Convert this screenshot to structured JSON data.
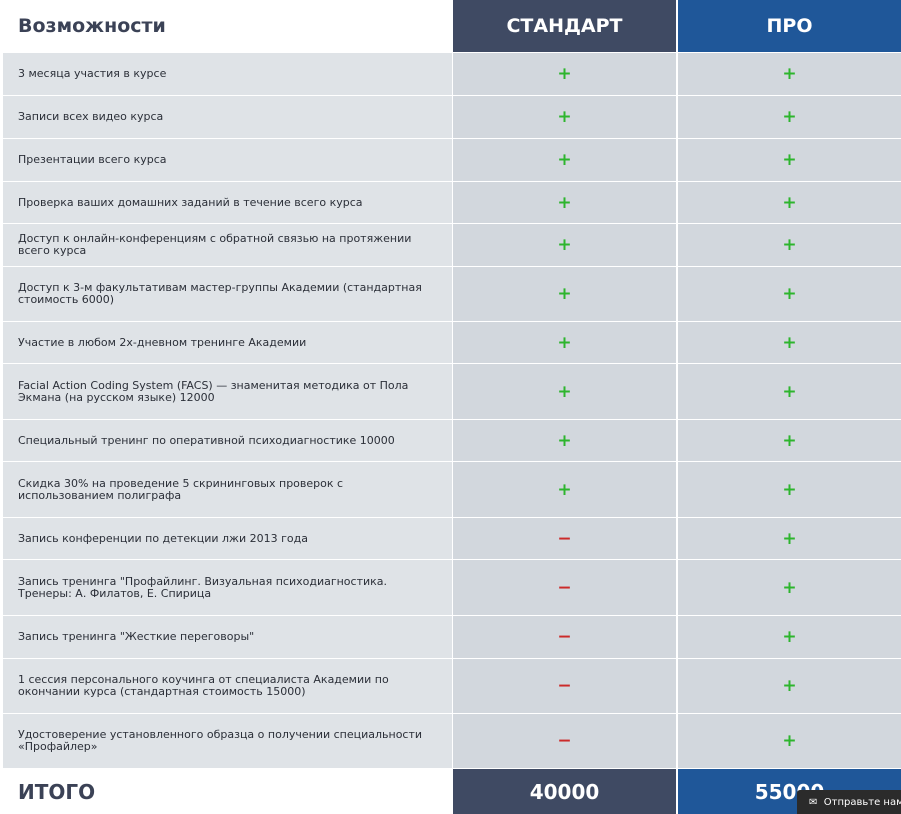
{
  "header": {
    "features": "Возможности",
    "standard": "СТАНДАРТ",
    "pro": "ПРО"
  },
  "rows": [
    [
      "3 месяца участия в курсе",
      "+",
      "+"
    ],
    [
      "Записи всех видео курса",
      "+",
      "+"
    ],
    [
      "Презентации всего курса",
      "+",
      "+"
    ],
    [
      "Проверка ваших домашних заданий в течение всего курса",
      "+",
      "+"
    ],
    [
      "Доступ к онлайн-конференциям с обратной связью на протяжении всего курса",
      "+",
      "+"
    ],
    [
      "Доступ к 3-м факультативам  мастер-группы Академии (стандартная стоимость 6000)",
      "+",
      "+"
    ],
    [
      "Участие в любом 2х-дневном тренинге Академии",
      "+",
      "+"
    ],
    [
      "Facial Action Coding System (FACS) — знаменитая методика от Пола Экмана (на русском языке) 12000",
      "+",
      "+"
    ],
    [
      "Специальный тренинг по оперативной психодиагностике 10000",
      "+",
      "+"
    ],
    [
      "Скидка 30% на проведение 5 скрининговых проверок с использованием полиграфа",
      "+",
      "+"
    ],
    [
      "Запись конференции по детекции лжи 2013 года",
      "−",
      "+"
    ],
    [
      "Запись тренинга \"Профайлинг. Визуальная психодиагностика. Тренеры: А. Филатов, Е. Спирица",
      "−",
      "+"
    ],
    [
      "Запись тренинга \"Жесткие переговоры\"",
      "−",
      "+"
    ],
    [
      "1 сессия персонального коучинга от специалиста Академии по окончании курса (стандартная стоимость 15000)",
      "−",
      "+"
    ],
    [
      "Удостоверение установленного образца о получении специальности «Профайлер»",
      "−",
      "+"
    ]
  ],
  "footer": {
    "label": "ИТОГО",
    "standard": "40000",
    "pro": "55000"
  },
  "chat_widget": {
    "label": "Отправьте нам"
  }
}
